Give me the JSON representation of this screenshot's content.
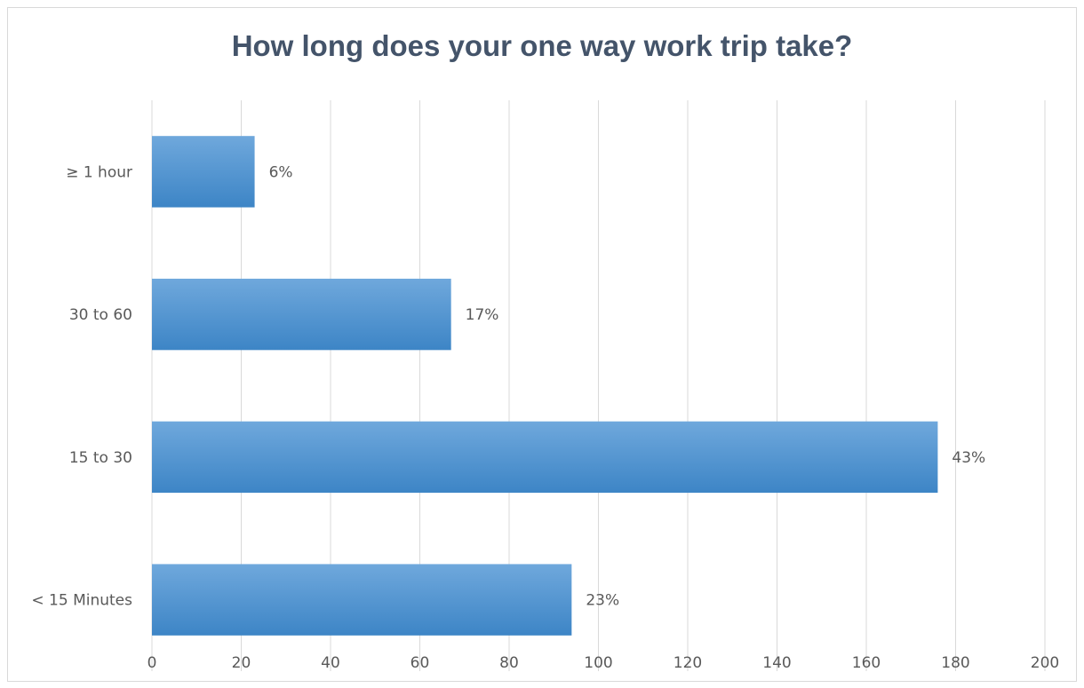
{
  "chart_data": {
    "type": "bar",
    "orientation": "horizontal",
    "title": "How long does your one way work trip take?",
    "categories": [
      "< 15 Minutes",
      "15 to 30",
      "30 to 60",
      "≥ 1 hour"
    ],
    "values": [
      94,
      176,
      67,
      23
    ],
    "data_labels": [
      "23%",
      "43%",
      "17%",
      "6%"
    ],
    "xlim": [
      0,
      200
    ],
    "xticks": [
      0,
      20,
      40,
      60,
      80,
      100,
      120,
      140,
      160,
      180,
      200
    ],
    "grid": "vertical",
    "legend": "none",
    "colors": {
      "bar_top": "#6fa8dc",
      "bar_bottom": "#3d85c6",
      "grid": "#d9d9d9",
      "text": "#595959",
      "title": "#44546a"
    }
  }
}
